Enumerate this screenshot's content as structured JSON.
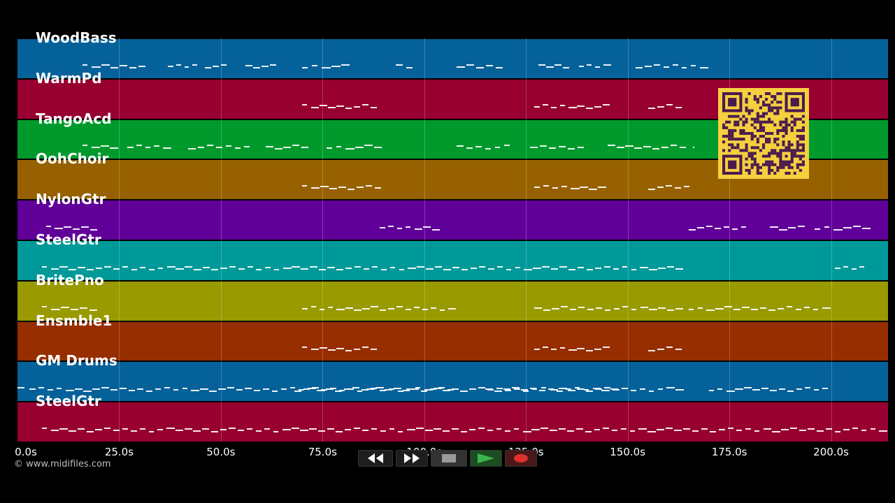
{
  "tracks": [
    {
      "name": "WoodBass",
      "color": "#056199"
    },
    {
      "name": "WarmPd",
      "color": "#970031"
    },
    {
      "name": "TangoAcd",
      "color": "#009a2c"
    },
    {
      "name": "OohChoir",
      "color": "#976100"
    },
    {
      "name": "NylonGtr",
      "color": "#610099"
    },
    {
      "name": "SteelGtr",
      "color": "#009999"
    },
    {
      "name": "BritePno",
      "color": "#999900"
    },
    {
      "name": "Ensmble1",
      "color": "#972e00"
    },
    {
      "name": "GM Drums",
      "color": "#056199"
    },
    {
      "name": "SteelGtr",
      "color": "#970031"
    }
  ],
  "axis": {
    "ticks": [
      "0.0s",
      "25.0s",
      "50.0s",
      "75.0s",
      "100.0s",
      "125.0s",
      "150.0s",
      "175.0s",
      "200.0s"
    ],
    "tick_seconds": [
      0,
      25,
      50,
      75,
      100,
      125,
      150,
      175,
      200
    ],
    "max_seconds": 214
  },
  "notes_seconds": [
    [
      [
        16,
        32
      ],
      [
        37,
        45
      ],
      [
        46,
        52
      ],
      [
        56,
        64
      ],
      [
        70,
        82
      ],
      [
        93,
        98
      ],
      [
        108,
        120
      ],
      [
        128,
        136
      ],
      [
        138,
        146
      ],
      [
        152,
        170
      ]
    ],
    [
      [
        70,
        89
      ],
      [
        127,
        146
      ],
      [
        155,
        164
      ]
    ],
    [
      [
        16,
        25
      ],
      [
        27,
        38
      ],
      [
        42,
        58
      ],
      [
        61,
        72
      ],
      [
        76,
        90
      ],
      [
        108,
        122
      ],
      [
        126,
        140
      ],
      [
        145,
        165
      ],
      [
        166,
        166
      ],
      [
        180,
        190
      ]
    ],
    [
      [
        70,
        90
      ],
      [
        127,
        145
      ],
      [
        155,
        166
      ]
    ],
    [
      [
        7,
        20
      ],
      [
        89,
        104
      ],
      [
        165,
        180
      ],
      [
        185,
        194
      ],
      [
        196,
        210
      ]
    ],
    [
      [
        6,
        164
      ],
      [
        201,
        209
      ]
    ],
    [
      [
        6,
        20
      ],
      [
        70,
        89
      ],
      [
        89,
        108
      ],
      [
        127,
        164
      ],
      [
        165,
        200
      ]
    ],
    [
      [
        70,
        89
      ],
      [
        127,
        146
      ],
      [
        155,
        164
      ]
    ],
    [
      [
        0,
        3
      ],
      [
        3,
        164
      ],
      [
        68,
        108
      ],
      [
        115,
        148
      ],
      [
        170,
        200
      ]
    ],
    [
      [
        6,
        214
      ]
    ]
  ],
  "copyright": "© www.midifiles.com",
  "transport": {
    "rewind": "rewind-icon",
    "forward": "fast-forward-icon",
    "stop": "stop-icon",
    "play": "play-icon",
    "record": "record-icon"
  },
  "colors": {
    "background": "#000000",
    "qr_bg": "#f4d03f",
    "qr_fg": "#4a1a4e",
    "play": "#3ab54a",
    "record": "#e03030"
  }
}
